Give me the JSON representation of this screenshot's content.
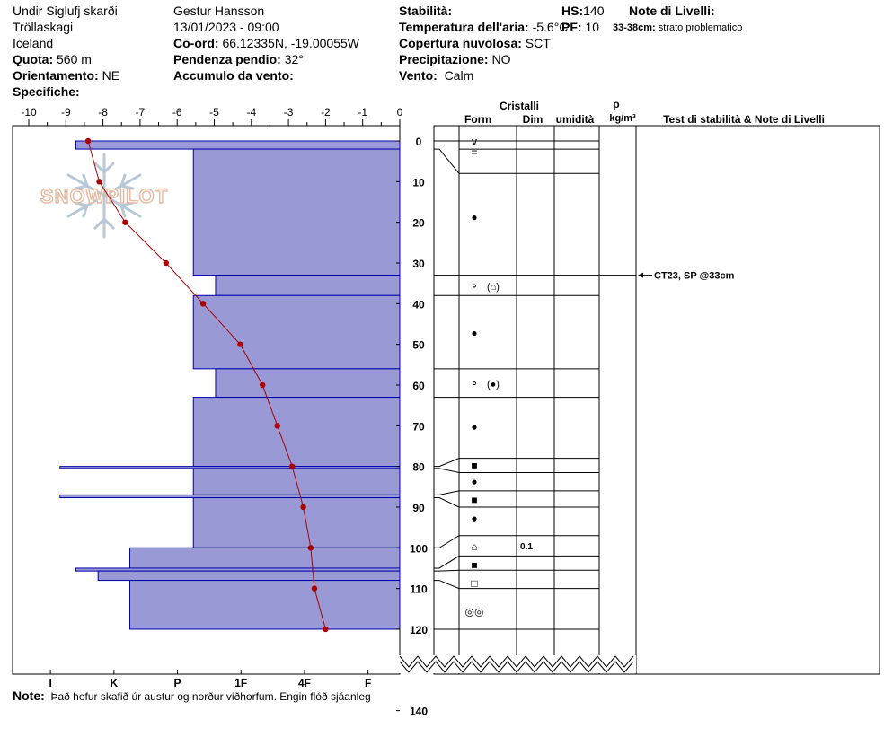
{
  "header": {
    "location": "Undir Siglufj skarði",
    "region": "Tröllaskagi",
    "country": "Iceland",
    "elevation_label": "Quota:",
    "elevation_value": "560 m",
    "aspect_label": "Orientamento:",
    "aspect_value": "NE",
    "specifics_label": "Specifiche:",
    "observer": "Gestur Hansson",
    "datetime": "13/01/2023 - 09:00",
    "coord_label": "Co-ord:",
    "coord_value": "66.12335N, -19.00055W",
    "slope_label": "Pendenza pendio:",
    "slope_value": "32°",
    "wind_loading_label": "Accumulo da vento:",
    "stability_label": "Stabilità:",
    "air_temp_label": "Temperatura dell'aria:",
    "air_temp_value": "-5.6°C",
    "cloud_label": "Copertura nuvolosa:",
    "cloud_value": "SCT",
    "precip_label": "Precipitazione:",
    "precip_value": "NO",
    "wind_label": "Vento:",
    "wind_value": "Calm",
    "hs_label": "HS:",
    "hs_value": "140",
    "pf_label": "PF:",
    "pf_value": "10",
    "layer_notes_label": "Note di Livelli:",
    "layer_note_range": "33-38cm:",
    "layer_note_text": "strato problematico"
  },
  "watermark": "SNOWPILOT",
  "note_label": "Note:",
  "note_text": "Það hefur skafið úr austur og norður viðhorfum. Engin flóð sjáanleg",
  "columns": {
    "cristalli": "Cristalli",
    "form": "Form",
    "dim": "Dim",
    "umidita": "umidità",
    "rho": "ρ",
    "density_unit": "kg/m³",
    "tests": "Test di stabilità & Note di Livelli"
  },
  "test_result": "CT23, SP @33cm",
  "chart_data": {
    "type": "snow-profile",
    "temperature_axis": {
      "min": -10,
      "max": 0,
      "ticks": [
        -10,
        -9,
        -8,
        -7,
        -6,
        -5,
        -4,
        -3,
        -2,
        -1,
        0
      ]
    },
    "depth_axis": {
      "min": 0,
      "max": 140,
      "ticks": [
        0,
        10,
        20,
        30,
        40,
        50,
        60,
        70,
        80,
        90,
        100,
        110,
        120,
        140
      ]
    },
    "hardness_axis": {
      "labels": [
        "I",
        "K",
        "P",
        "1F",
        "4F",
        "F"
      ]
    },
    "hardness_note": "hardness index: F=1, 4F=2, 1F=3, P=4, K=5, I=6",
    "hardness_layers": [
      {
        "top": 0,
        "bottom": 2,
        "hardness": 5.6
      },
      {
        "top": 2,
        "bottom": 33,
        "hardness": 3.75
      },
      {
        "top": 33,
        "bottom": 38,
        "hardness": 3.4
      },
      {
        "top": 38,
        "bottom": 56,
        "hardness": 3.75
      },
      {
        "top": 56,
        "bottom": 63,
        "hardness": 3.4
      },
      {
        "top": 63,
        "bottom": 80,
        "hardness": 3.75
      },
      {
        "top": 80,
        "bottom": 80.5,
        "hardness": 5.85
      },
      {
        "top": 80.5,
        "bottom": 87,
        "hardness": 3.75
      },
      {
        "top": 87,
        "bottom": 87.7,
        "hardness": 5.85
      },
      {
        "top": 87.7,
        "bottom": 100,
        "hardness": 3.75
      },
      {
        "top": 100,
        "bottom": 105,
        "hardness": 4.75
      },
      {
        "top": 105,
        "bottom": 105.7,
        "hardness": 5.6
      },
      {
        "top": 105.7,
        "bottom": 108,
        "hardness": 5.25
      },
      {
        "top": 108,
        "bottom": 120,
        "hardness": 4.75
      }
    ],
    "temperature_profile": [
      {
        "depth": 0,
        "temp": -8.4
      },
      {
        "depth": 10,
        "temp": -8.1
      },
      {
        "depth": 20,
        "temp": -7.4
      },
      {
        "depth": 30,
        "temp": -6.3
      },
      {
        "depth": 40,
        "temp": -5.3
      },
      {
        "depth": 50,
        "temp": -4.3
      },
      {
        "depth": 60,
        "temp": -3.7
      },
      {
        "depth": 70,
        "temp": -3.3
      },
      {
        "depth": 80,
        "temp": -2.9
      },
      {
        "depth": 90,
        "temp": -2.6
      },
      {
        "depth": 100,
        "temp": -2.4
      },
      {
        "depth": 110,
        "temp": -2.3
      },
      {
        "depth": 120,
        "temp": -2.0
      }
    ],
    "layer_boundaries": [
      0,
      2,
      8,
      33,
      38,
      56,
      63,
      78,
      81.5,
      86,
      90,
      97,
      102,
      105.5,
      110,
      120
    ],
    "crystal_forms": [
      {
        "depth": 0,
        "symbol": "∨"
      },
      {
        "depth": 2.5,
        "symbol": "="
      },
      {
        "depth": 18.5,
        "symbol": "●"
      },
      {
        "depth": 35.5,
        "symbol": "⚬"
      },
      {
        "depth": 47,
        "symbol": "●"
      },
      {
        "depth": 59.5,
        "symbol": "⚬"
      },
      {
        "depth": 70,
        "symbol": "●"
      },
      {
        "depth": 79.5,
        "symbol": "■"
      },
      {
        "depth": 83.5,
        "symbol": "●"
      },
      {
        "depth": 88,
        "symbol": "■"
      },
      {
        "depth": 92.5,
        "symbol": "●"
      },
      {
        "depth": 99.5,
        "symbol": "⌂"
      },
      {
        "depth": 104,
        "symbol": "■"
      },
      {
        "depth": 108.5,
        "symbol": "□"
      },
      {
        "depth": 115.5,
        "symbol": "◎◎"
      }
    ],
    "form_labels": [
      {
        "depth": 35.5,
        "text": "(⌂)"
      },
      {
        "depth": 59.5,
        "text": "(●)"
      }
    ],
    "grain_size": [
      {
        "depth": 99.5,
        "value": "0.1"
      }
    ],
    "test_depth": 33,
    "colors": {
      "hardness_fill": "#9999d6",
      "hardness_edge": "#0000aa",
      "temperature": "#aa0000"
    }
  }
}
